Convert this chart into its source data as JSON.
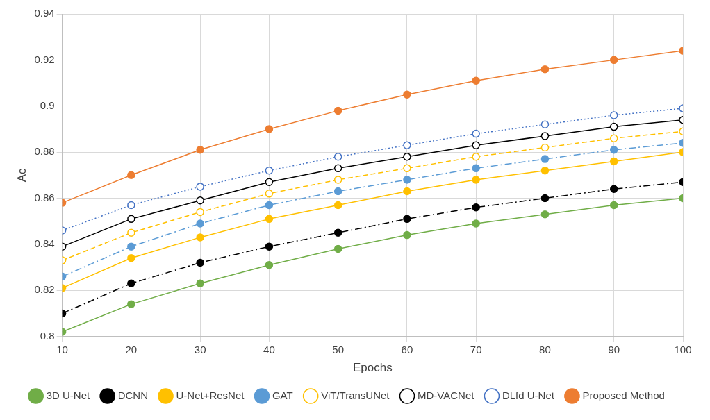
{
  "chart_data": {
    "type": "line",
    "xlabel": "Epochs",
    "ylabel": "Ac",
    "x": [
      10,
      20,
      30,
      40,
      50,
      60,
      70,
      80,
      90,
      100
    ],
    "xlim": [
      10,
      100
    ],
    "xticks": [
      10,
      20,
      30,
      40,
      50,
      60,
      70,
      80,
      90,
      100
    ],
    "ylim": [
      0.8,
      0.94
    ],
    "yticks": [
      0.8,
      0.82,
      0.84,
      0.86,
      0.88,
      0.9,
      0.92,
      0.94
    ],
    "grid": true,
    "legend": "bottom",
    "marker": "circle",
    "series": [
      {
        "name": "3D U-Net",
        "color": "#70ad47",
        "line_style": "solid",
        "values": [
          0.802,
          0.814,
          0.823,
          0.831,
          0.838,
          0.844,
          0.849,
          0.853,
          0.857,
          0.86
        ]
      },
      {
        "name": "DCNN",
        "color": "#000000",
        "line_style": "dashdot",
        "values": [
          0.81,
          0.823,
          0.832,
          0.839,
          0.845,
          0.851,
          0.856,
          0.86,
          0.864,
          0.867
        ]
      },
      {
        "name": "U-Net+ResNet",
        "color": "#ffc000",
        "line_style": "solid",
        "values": [
          0.821,
          0.834,
          0.843,
          0.851,
          0.857,
          0.863,
          0.868,
          0.872,
          0.876,
          0.88
        ]
      },
      {
        "name": "GAT",
        "color": "#5b9bd5",
        "line_style": "dashdot",
        "values": [
          0.826,
          0.839,
          0.849,
          0.857,
          0.863,
          0.868,
          0.873,
          0.877,
          0.881,
          0.884
        ]
      },
      {
        "name": "ViT/TransUNet",
        "color": "#ffc000",
        "line_style": "dashed",
        "values": [
          0.833,
          0.845,
          0.854,
          0.862,
          0.868,
          0.873,
          0.878,
          0.882,
          0.886,
          0.889
        ]
      },
      {
        "name": "MD-VACNet",
        "color": "#000000",
        "line_style": "solid",
        "values": [
          0.839,
          0.851,
          0.859,
          0.867,
          0.873,
          0.878,
          0.883,
          0.887,
          0.891,
          0.894
        ]
      },
      {
        "name": "DLfd U-Net",
        "color": "#4472c4",
        "line_style": "dotted",
        "values": [
          0.846,
          0.857,
          0.865,
          0.872,
          0.878,
          0.883,
          0.888,
          0.892,
          0.896,
          0.899
        ]
      },
      {
        "name": "Proposed Method",
        "color": "#ed7d31",
        "line_style": "solid",
        "values": [
          0.858,
          0.87,
          0.881,
          0.89,
          0.898,
          0.905,
          0.911,
          0.916,
          0.92,
          0.924
        ]
      }
    ]
  }
}
